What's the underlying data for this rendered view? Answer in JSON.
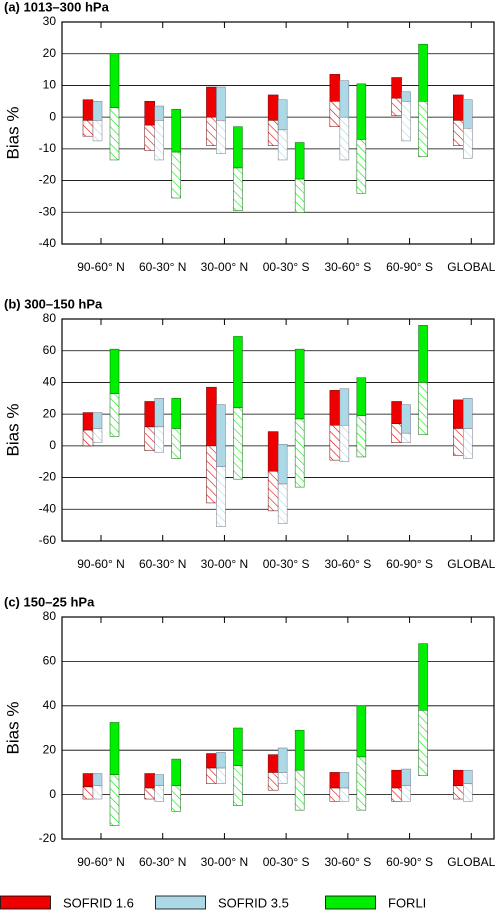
{
  "legend": [
    {
      "name": "SOFRID 1.6",
      "color": "#ee0000"
    },
    {
      "name": "SOFRID 3.5",
      "color": "#add8e6"
    },
    {
      "name": "FORLI",
      "color": "#00ee00"
    }
  ],
  "chart_data": [
    {
      "type": "floating-bar",
      "title": "(a) 1013–300 hPa",
      "ylabel": "Bias %",
      "categories": [
        "90-60° N",
        "60-30° N",
        "30-00° N",
        "00-30° S",
        "30-60° S",
        "60-90° S",
        "GLOBAL"
      ],
      "ylim": [
        -40,
        30
      ],
      "yticks": [
        -40,
        -30,
        -20,
        -10,
        0,
        10,
        20,
        30
      ],
      "grid": true,
      "series": [
        {
          "values": [
            [
              -6,
              -1,
              5.5
            ],
            [
              -10.5,
              -2.5,
              5
            ],
            [
              -9,
              0,
              9.5
            ],
            [
              -9,
              -1,
              7
            ],
            [
              -3,
              5,
              13.5
            ],
            [
              0.5,
              6,
              12.5
            ],
            [
              -9,
              -1,
              7
            ]
          ]
        },
        {
          "values": [
            [
              -7.5,
              -1,
              5
            ],
            [
              -13.5,
              -1,
              3.5
            ],
            [
              -11.5,
              -1,
              9.5
            ],
            [
              -13.5,
              -4,
              5.5
            ],
            [
              -13.5,
              0,
              11.5
            ],
            [
              -7.5,
              5,
              8
            ],
            [
              -13,
              -3.5,
              5.5
            ]
          ]
        },
        {
          "values": [
            [
              -13.5,
              3,
              20
            ],
            [
              -25.5,
              -11,
              2.5
            ],
            [
              -29.5,
              -16,
              -3
            ],
            [
              -30,
              -19.5,
              -8
            ],
            [
              -24,
              -7,
              10.5
            ],
            [
              -12.5,
              5,
              23
            ],
            null
          ]
        }
      ]
    },
    {
      "type": "floating-bar",
      "title": "(b) 300–150 hPa",
      "ylabel": "Bias %",
      "categories": [
        "90-60° N",
        "60-30° N",
        "30-00° N",
        "00-30° S",
        "30-60° S",
        "60-90° S",
        "GLOBAL"
      ],
      "ylim": [
        -60,
        80
      ],
      "yticks": [
        -60,
        -40,
        -20,
        0,
        20,
        40,
        60,
        80
      ],
      "grid": true,
      "series": [
        {
          "values": [
            [
              0,
              10,
              21
            ],
            [
              -3,
              12,
              28
            ],
            [
              -36,
              0,
              37
            ],
            [
              -41,
              -16,
              9
            ],
            [
              -9,
              13,
              35
            ],
            [
              2,
              14,
              28
            ],
            [
              -6,
              11,
              29
            ]
          ]
        },
        {
          "values": [
            [
              2,
              11,
              21
            ],
            [
              -4,
              12,
              30
            ],
            [
              -51,
              -13,
              26
            ],
            [
              -49,
              -24,
              1
            ],
            [
              -10,
              13,
              36
            ],
            [
              2,
              8,
              26
            ],
            [
              -8,
              11,
              30
            ]
          ]
        },
        {
          "values": [
            [
              6,
              33,
              61
            ],
            [
              -8,
              11,
              30
            ],
            [
              -21,
              24,
              69
            ],
            [
              -26,
              17,
              61
            ],
            [
              -7,
              19,
              43
            ],
            [
              7,
              40,
              76
            ],
            null
          ]
        }
      ]
    },
    {
      "type": "floating-bar",
      "title": "(c) 150–25 hPa",
      "ylabel": "Bias %",
      "categories": [
        "90-60° N",
        "60-30° N",
        "30-00° N",
        "00-30° S",
        "30-60° S",
        "60-90° S",
        "GLOBAL"
      ],
      "ylim": [
        -20,
        80
      ],
      "yticks": [
        -20,
        0,
        20,
        40,
        60,
        80
      ],
      "grid": true,
      "series": [
        {
          "values": [
            [
              -2,
              3.5,
              9.5
            ],
            [
              -2,
              3,
              9.5
            ],
            [
              5,
              12,
              18.5
            ],
            [
              2,
              10,
              18
            ],
            [
              -3,
              3,
              10
            ],
            [
              -3,
              3,
              11
            ],
            [
              -2,
              4,
              11
            ]
          ]
        },
        {
          "values": [
            [
              -2,
              4,
              9.5
            ],
            [
              -3,
              4,
              9
            ],
            [
              5,
              12,
              19
            ],
            [
              5,
              10,
              21
            ],
            [
              -3,
              3,
              10
            ],
            [
              -3,
              4,
              11.5
            ],
            [
              -3,
              5,
              11
            ]
          ]
        },
        {
          "values": [
            [
              -14,
              9,
              32.5
            ],
            [
              -7.5,
              4,
              16
            ],
            [
              -5,
              13,
              30
            ],
            [
              -7,
              11,
              29
            ],
            [
              -7,
              17,
              40
            ],
            [
              8.5,
              38,
              68
            ],
            null
          ]
        }
      ]
    }
  ]
}
